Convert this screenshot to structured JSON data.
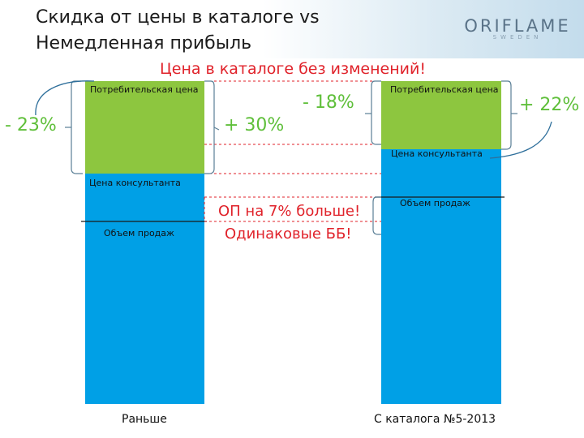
{
  "title": {
    "line1": "Скидка от цены в каталоге vs",
    "line2": "Немедленная прибыль"
  },
  "logo": {
    "word": "ORIFLAME",
    "sub": "SWEDEN"
  },
  "headline": "Цена в каталоге без изменений!",
  "before": {
    "consumer_price_label": "Потребительская цена",
    "consultant_price_label": "Цена консультанта",
    "sales_volume_label": "Объем продаж",
    "caption": "Раньше",
    "discount": "- 23%"
  },
  "after": {
    "consumer_price_label": "Потребительская цена",
    "consultant_price_label": "Цена консультанта",
    "sales_volume_label": "Объем продаж",
    "caption": "С каталога №5-2013",
    "discount": "+ 22%"
  },
  "middle": {
    "increase": "+ 30%",
    "decrease": "- 18%",
    "note_line1": "ОП на 7% больше!",
    "note_line2": "Одинаковые ББ!"
  },
  "colors": {
    "green_segment": "#8dc63f",
    "blue_segment": "#00a0e6",
    "accent_red": "#e0222a",
    "accent_green": "#5fbf3a",
    "bracket": "#5a7f96",
    "curve": "#2e6f9b"
  }
}
